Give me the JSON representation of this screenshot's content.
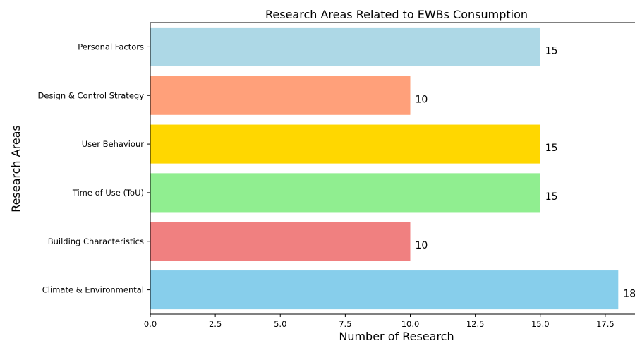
{
  "chart_data": {
    "type": "bar",
    "orientation": "horizontal",
    "title": "Research Areas Related to EWBs Consumption",
    "xlabel": "Number of Research",
    "ylabel": "Research Areas",
    "categories": [
      "Climate & Environmental",
      "Building Characteristics",
      "Time of Use (ToU)",
      "User Behaviour",
      "Design & Control Strategy",
      "Personal Factors"
    ],
    "values": [
      18,
      10,
      15,
      15,
      10,
      15
    ],
    "value_labels": [
      "18",
      "10",
      "15",
      "15",
      "10",
      "15"
    ],
    "colors": [
      "#87ceeb",
      "#f08080",
      "#90ee90",
      "#ffd700",
      "#ffa07a",
      "#add8e6"
    ],
    "xlim": [
      0,
      18.9
    ],
    "xticks": [
      0,
      2.5,
      5,
      7.5,
      10,
      12.5,
      15,
      17.5
    ],
    "xtick_labels": [
      "0.0",
      "2.5",
      "5.0",
      "7.5",
      "10.0",
      "12.5",
      "15.0",
      "17.5"
    ],
    "grid": false,
    "legend": "none"
  }
}
